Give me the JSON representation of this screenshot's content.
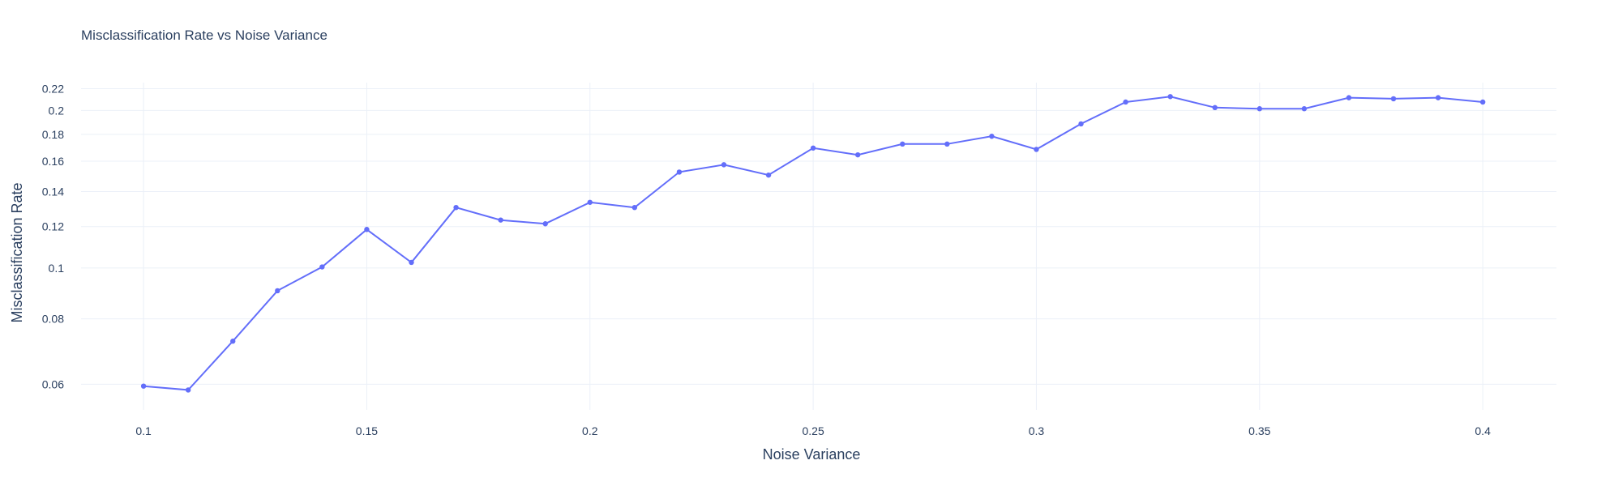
{
  "chart_data": {
    "type": "line",
    "title": "Misclassification Rate vs Noise Variance",
    "xlabel": "Noise Variance",
    "ylabel": "Misclassification Rate",
    "y_scale": "log",
    "grid": true,
    "x_ticks": [
      0.1,
      0.15,
      0.2,
      0.25,
      0.3,
      0.35,
      0.4
    ],
    "x_tick_labels": [
      "0.1",
      "0.15",
      "0.2",
      "0.25",
      "0.3",
      "0.35",
      "0.4"
    ],
    "y_ticks": [
      0.06,
      0.08,
      0.1,
      0.12,
      0.14,
      0.16,
      0.18,
      0.2,
      0.22
    ],
    "y_tick_labels": [
      "0.06",
      "0.08",
      "0.1",
      "0.12",
      "0.14",
      "0.16",
      "0.18",
      "0.2",
      "0.22"
    ],
    "xlim": [
      0.086,
      0.4165
    ],
    "ylim": [
      0.0536,
      0.226
    ],
    "line_color": "#636efa",
    "series": [
      {
        "x": [
          0.1,
          0.11,
          0.12,
          0.13,
          0.14,
          0.15,
          0.16,
          0.17,
          0.18,
          0.19,
          0.2,
          0.21,
          0.22,
          0.23,
          0.24,
          0.25,
          0.26,
          0.27,
          0.28,
          0.29,
          0.3,
          0.31,
          0.32,
          0.33,
          0.34,
          0.35,
          0.36,
          0.37,
          0.38,
          0.39,
          0.4
        ],
        "values": [
          0.0595,
          0.0585,
          0.0725,
          0.0905,
          0.1005,
          0.1185,
          0.1025,
          0.1305,
          0.1235,
          0.1215,
          0.1335,
          0.1305,
          0.1525,
          0.1575,
          0.1505,
          0.1695,
          0.1645,
          0.1725,
          0.1725,
          0.1785,
          0.1685,
          0.1885,
          0.2075,
          0.2125,
          0.2025,
          0.2015,
          0.2015,
          0.2115,
          0.2105,
          0.2115,
          0.2075
        ]
      }
    ]
  }
}
